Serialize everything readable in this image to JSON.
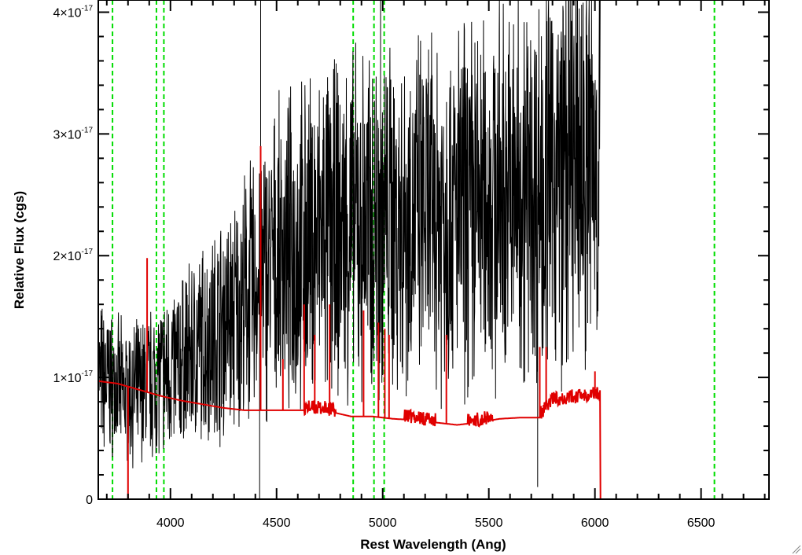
{
  "chart_data": {
    "type": "line",
    "xlabel": "Rest Wavelength (Ang)",
    "ylabel": "Relative Flux (cgs)",
    "xlim": [
      3660,
      6820
    ],
    "ylim": [
      0,
      4.1e-17
    ],
    "x_ticks": [
      {
        "value": 4000,
        "label": "4000"
      },
      {
        "value": 4500,
        "label": "4500"
      },
      {
        "value": 5000,
        "label": "5000"
      },
      {
        "value": 5500,
        "label": "5500"
      },
      {
        "value": 6000,
        "label": "6000"
      },
      {
        "value": 6500,
        "label": "6500"
      }
    ],
    "y_ticks": [
      {
        "value": 0,
        "base": "0",
        "exp": ""
      },
      {
        "value": 1e-17,
        "base": "1×10",
        "exp": "-17"
      },
      {
        "value": 2e-17,
        "base": "2×10",
        "exp": "-17"
      },
      {
        "value": 3e-17,
        "base": "3×10",
        "exp": "-17"
      },
      {
        "value": 4e-17,
        "base": "4×10",
        "exp": "-17"
      }
    ],
    "grid": false,
    "colors": {
      "spectrum": "#000000",
      "model": "#e00000",
      "lines": "#00dd00"
    },
    "reference_lines": [
      3727,
      3934,
      3969,
      4861,
      4959,
      5007,
      6563
    ],
    "series": [
      {
        "color": "#000000",
        "noisy": true,
        "points": [
          [
            3660,
            1e-17
          ],
          [
            3720,
            9.5e-18
          ],
          [
            3800,
            8.5e-18
          ],
          [
            3900,
            9.5e-18
          ],
          [
            4000,
            1.05e-17
          ],
          [
            4100,
            1.2e-17
          ],
          [
            4200,
            1.35e-17
          ],
          [
            4300,
            1.5e-17
          ],
          [
            4400,
            1.75e-17
          ],
          [
            4500,
            1.95e-17
          ],
          [
            4600,
            2.05e-17
          ],
          [
            4700,
            2.15e-17
          ],
          [
            4800,
            2.2e-17
          ],
          [
            4900,
            2.25e-17
          ],
          [
            5000,
            2.3e-17
          ],
          [
            5100,
            2.3e-17
          ],
          [
            5200,
            2.35e-17
          ],
          [
            5300,
            2.35e-17
          ],
          [
            5400,
            2.4e-17
          ],
          [
            5500,
            2.45e-17
          ],
          [
            5600,
            2.5e-17
          ],
          [
            5700,
            2.55e-17
          ],
          [
            5800,
            2.65e-17
          ],
          [
            5900,
            2.75e-17
          ],
          [
            6000,
            2.8e-17
          ],
          [
            6025,
            2.8e-17
          ]
        ]
      },
      {
        "color": "#e00000",
        "noisy": false,
        "points": [
          [
            3660,
            9.7e-18
          ],
          [
            3750,
            9.5e-18
          ],
          [
            3850,
            9e-18
          ],
          [
            3950,
            8.5e-18
          ],
          [
            4050,
            8.1e-18
          ],
          [
            4150,
            7.8e-18
          ],
          [
            4250,
            7.5e-18
          ],
          [
            4350,
            7.3e-18
          ],
          [
            4450,
            7.3e-18
          ],
          [
            4550,
            7.3e-18
          ],
          [
            4650,
            7.3e-18
          ],
          [
            4750,
            7.2e-18
          ],
          [
            4850,
            6.8e-18
          ],
          [
            4950,
            6.8e-18
          ],
          [
            5050,
            6.6e-18
          ],
          [
            5150,
            6.5e-18
          ],
          [
            5250,
            6.3e-18
          ],
          [
            5350,
            6.1e-18
          ],
          [
            5450,
            6.3e-18
          ],
          [
            5550,
            6.6e-18
          ],
          [
            5650,
            6.7e-18
          ],
          [
            5740,
            6.7e-18
          ],
          [
            5800,
            8e-18
          ],
          [
            5900,
            8.2e-18
          ],
          [
            6000,
            8.5e-18
          ],
          [
            6025,
            8.3e-18
          ],
          [
            6026,
            0.0
          ],
          [
            6820,
            0.0
          ]
        ]
      }
    ],
    "model_spikes": [
      [
        3890,
        1.98e-17
      ],
      [
        3800,
        0.0
      ],
      [
        4425,
        2.9e-17
      ],
      [
        4530,
        1.15e-17
      ],
      [
        4630,
        1.6e-17
      ],
      [
        4680,
        1.35e-17
      ],
      [
        4750,
        1.6e-17
      ],
      [
        4910,
        1.55e-17
      ],
      [
        4980,
        1.45e-17
      ],
      [
        5010,
        1.4e-17
      ],
      [
        5030,
        1.35e-17
      ],
      [
        5300,
        1.35e-17
      ],
      [
        5740,
        1.25e-17
      ],
      [
        5770,
        1.25e-17
      ],
      [
        6000,
        1.05e-17
      ]
    ]
  }
}
